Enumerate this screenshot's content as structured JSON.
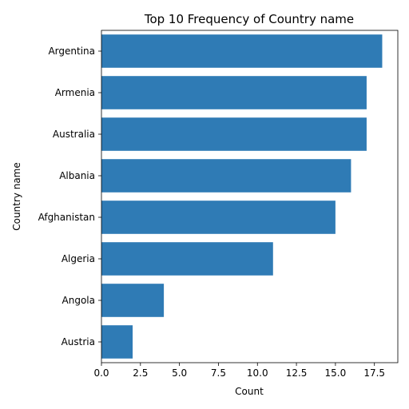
{
  "chart_data": {
    "type": "bar",
    "orientation": "horizontal",
    "title": "Top 10 Frequency of Country name",
    "xlabel": "Count",
    "ylabel": "Country name",
    "categories": [
      "Argentina",
      "Armenia",
      "Australia",
      "Albania",
      "Afghanistan",
      "Algeria",
      "Angola",
      "Austria"
    ],
    "values": [
      18,
      17,
      17,
      16,
      15,
      11,
      4,
      2
    ],
    "xlim": [
      0,
      19
    ],
    "xticks": [
      0,
      2.5,
      5,
      7.5,
      10,
      12.5,
      15,
      17.5
    ],
    "xtick_labels": [
      "0.0",
      "2.5",
      "5.0",
      "7.5",
      "10.0",
      "12.5",
      "15.0",
      "17.5"
    ],
    "bar_color": "#2f7bb5",
    "grid": false,
    "legend": "none"
  }
}
